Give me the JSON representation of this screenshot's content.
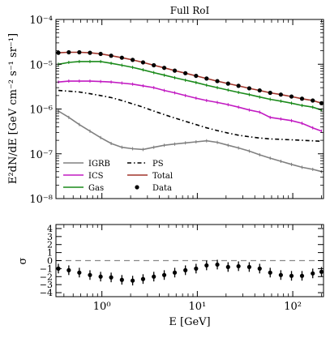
{
  "chart_data": [
    {
      "type": "line",
      "title": "Full RoI",
      "xlabel": "E [GeV]",
      "ylabel": "E²dN/dE [GeV cm⁻² s⁻¹ sr⁻¹]",
      "xscale": "log",
      "yscale": "log",
      "xlim": [
        0.33,
        210
      ],
      "ylim": [
        1e-08,
        0.0001
      ],
      "x_ticks": [
        1,
        10,
        100
      ],
      "x_tick_labels": [
        "10⁰",
        "10¹",
        "10²"
      ],
      "y_ticks": [
        1e-08,
        1e-07,
        1e-06,
        1e-05,
        0.0001
      ],
      "y_tick_labels": [
        "10⁻⁸",
        "10⁻⁷",
        "10⁻⁶",
        "10⁻⁵",
        "10⁻⁴"
      ],
      "legend_position": "bottom-left",
      "grid": false,
      "x": [
        0.35,
        0.45,
        0.58,
        0.75,
        0.97,
        1.25,
        1.62,
        2.1,
        2.7,
        3.5,
        4.5,
        5.8,
        7.5,
        9.7,
        12.5,
        16.2,
        21,
        27,
        35,
        45,
        58,
        75,
        97,
        125,
        162,
        200
      ],
      "series": [
        {
          "name": "Total",
          "color": "#a0342a",
          "style": "solid",
          "values": [
            1.8e-05,
            1.85e-05,
            1.85e-05,
            1.8e-05,
            1.7e-05,
            1.55e-05,
            1.4e-05,
            1.25e-05,
            1.1e-05,
            9.5e-06,
            8.3e-06,
            7.2e-06,
            6.3e-06,
            5.5e-06,
            4.8e-06,
            4.2e-06,
            3.7e-06,
            3.3e-06,
            2.9e-06,
            2.6e-06,
            2.3e-06,
            2.1e-06,
            1.9e-06,
            1.7e-06,
            1.55e-06,
            1.35e-06
          ]
        },
        {
          "name": "Data",
          "color": "#000000",
          "style": "markers",
          "values": [
            1.8e-05,
            1.85e-05,
            1.85e-05,
            1.8e-05,
            1.7e-05,
            1.55e-05,
            1.4e-05,
            1.25e-05,
            1.1e-05,
            9.5e-06,
            8.3e-06,
            7.2e-06,
            6.3e-06,
            5.5e-06,
            4.8e-06,
            4.2e-06,
            3.7e-06,
            3.3e-06,
            2.9e-06,
            2.6e-06,
            2.3e-06,
            2.1e-06,
            1.9e-06,
            1.7e-06,
            1.55e-06,
            1.35e-06
          ]
        },
        {
          "name": "Gas",
          "color": "#1a8a1a",
          "style": "solid",
          "values": [
            1e-05,
            1.1e-05,
            1.15e-05,
            1.15e-05,
            1.15e-05,
            1.05e-05,
            9.5e-06,
            8.5e-06,
            7.5e-06,
            6.5e-06,
            5.7e-06,
            5e-06,
            4.4e-06,
            3.9e-06,
            3.4e-06,
            3e-06,
            2.65e-06,
            2.35e-06,
            2.1e-06,
            1.85e-06,
            1.65e-06,
            1.5e-06,
            1.35e-06,
            1.2e-06,
            1.1e-06,
            9.5e-07
          ]
        },
        {
          "name": "ICS",
          "color": "#c21bc2",
          "style": "solid",
          "values": [
            4e-06,
            4.2e-06,
            4.2e-06,
            4.2e-06,
            4.1e-06,
            4e-06,
            3.8e-06,
            3.6e-06,
            3.3e-06,
            3e-06,
            2.6e-06,
            2.3e-06,
            2e-06,
            1.75e-06,
            1.55e-06,
            1.4e-06,
            1.25e-06,
            1.1e-06,
            9.5e-07,
            8.5e-07,
            6.5e-07,
            6e-07,
            5.5e-07,
            4.8e-07,
            3.8e-07,
            3.2e-07
          ]
        },
        {
          "name": "PS",
          "color": "#000000",
          "style": "dashdot",
          "values": [
            2.6e-06,
            2.5e-06,
            2.4e-06,
            2.2e-06,
            2e-06,
            1.8e-06,
            1.55e-06,
            1.3e-06,
            1.1e-06,
            9e-07,
            7.5e-07,
            6.3e-07,
            5.3e-07,
            4.5e-07,
            3.8e-07,
            3.3e-07,
            2.9e-07,
            2.6e-07,
            2.4e-07,
            2.25e-07,
            2.15e-07,
            2.1e-07,
            2.05e-07,
            2e-07,
            1.95e-07,
            1.9e-07
          ]
        },
        {
          "name": "IGRB",
          "color": "#808080",
          "style": "solid",
          "values": [
            9e-07,
            6.5e-07,
            4.5e-07,
            3.2e-07,
            2.3e-07,
            1.7e-07,
            1.4e-07,
            1.3e-07,
            1.25e-07,
            1.4e-07,
            1.55e-07,
            1.65e-07,
            1.75e-07,
            1.85e-07,
            1.95e-07,
            1.8e-07,
            1.55e-07,
            1.35e-07,
            1.15e-07,
            9.5e-08,
            8e-08,
            6.8e-08,
            5.8e-08,
            5e-08,
            4.5e-08,
            4e-08
          ]
        }
      ]
    },
    {
      "type": "scatter",
      "ylabel": "σ",
      "xlabel": "E [GeV]",
      "xscale": "log",
      "xlim": [
        0.33,
        210
      ],
      "ylim": [
        -4.5,
        4.5
      ],
      "y_ticks": [
        -4,
        -3,
        -2,
        -1,
        0,
        1,
        2,
        3,
        4
      ],
      "y_tick_labels": [
        "−4",
        "−3",
        "−2",
        "−1",
        "0",
        "1",
        "2",
        "3",
        "4"
      ],
      "reference_line": 0,
      "x": [
        0.35,
        0.45,
        0.58,
        0.75,
        0.97,
        1.25,
        1.62,
        2.1,
        2.7,
        3.5,
        4.5,
        5.8,
        7.5,
        9.7,
        12.5,
        16.2,
        21,
        27,
        35,
        45,
        58,
        75,
        97,
        125,
        162,
        200
      ],
      "values": [
        -1.0,
        -1.2,
        -1.5,
        -1.8,
        -2.0,
        -2.1,
        -2.4,
        -2.5,
        -2.3,
        -2.0,
        -1.8,
        -1.5,
        -1.2,
        -1.0,
        -0.6,
        -0.5,
        -0.8,
        -0.7,
        -0.8,
        -1.0,
        -1.5,
        -1.8,
        -1.9,
        -1.9,
        -1.6,
        -1.4
      ],
      "error": [
        0.6,
        0.6,
        0.6,
        0.6,
        0.6,
        0.6,
        0.6,
        0.6,
        0.6,
        0.6,
        0.6,
        0.6,
        0.6,
        0.6,
        0.6,
        0.6,
        0.6,
        0.6,
        0.6,
        0.6,
        0.6,
        0.6,
        0.6,
        0.6,
        0.6,
        0.6
      ]
    }
  ]
}
